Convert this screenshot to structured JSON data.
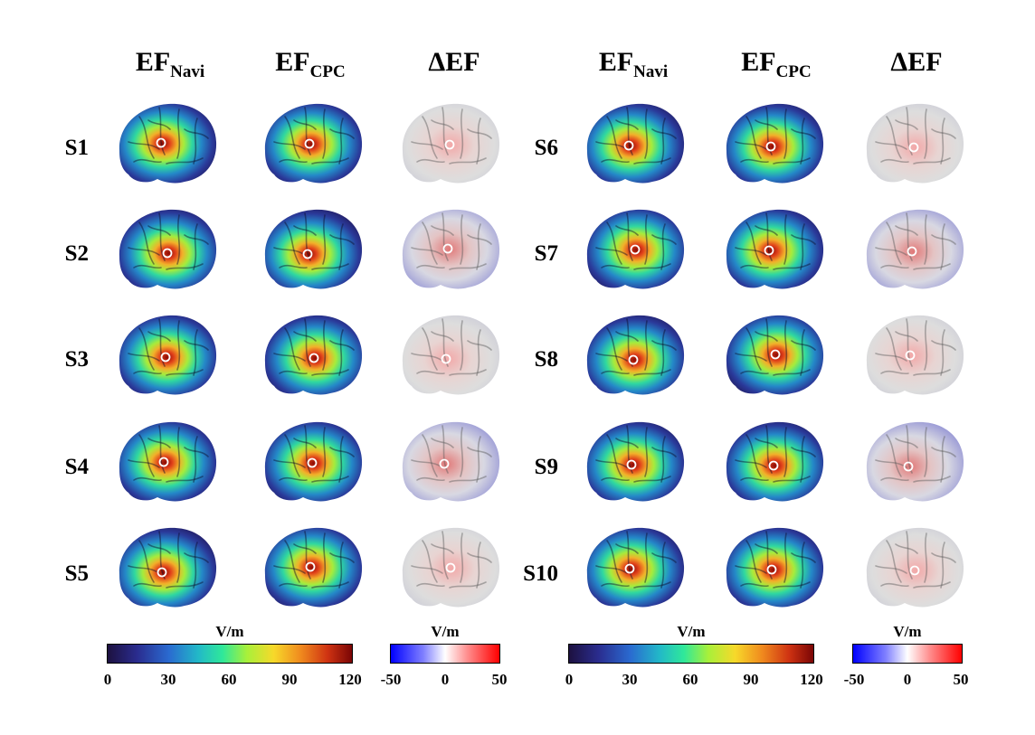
{
  "headers": {
    "left": [
      {
        "main": "EF",
        "sub": "Navi"
      },
      {
        "main": "EF",
        "sub": "CPC"
      },
      {
        "main": "ΔEF",
        "sub": ""
      }
    ],
    "right": [
      {
        "main": "EF",
        "sub": "Navi"
      },
      {
        "main": "EF",
        "sub": "CPC"
      },
      {
        "main": "ΔEF",
        "sub": ""
      }
    ]
  },
  "subjects": {
    "left": [
      "S1",
      "S2",
      "S3",
      "S4",
      "S5"
    ],
    "right": [
      "S6",
      "S7",
      "S8",
      "S9",
      "S10"
    ]
  },
  "colorbars": {
    "ef": {
      "unit": "V/m",
      "ticks": [
        "0",
        "30",
        "60",
        "90",
        "120"
      ]
    },
    "delta": {
      "unit": "V/m",
      "ticks": [
        "-50",
        "0",
        "50"
      ]
    }
  },
  "colors": {
    "jet": [
      "#1d1140",
      "#2a2c8e",
      "#2a6ad0",
      "#22b8c8",
      "#2fe89a",
      "#a8f03a",
      "#f7d92a",
      "#f08a1e",
      "#cf3312",
      "#7a0505"
    ],
    "diverging": [
      "#0000ff",
      "#ffffff",
      "#ff0000"
    ]
  }
}
